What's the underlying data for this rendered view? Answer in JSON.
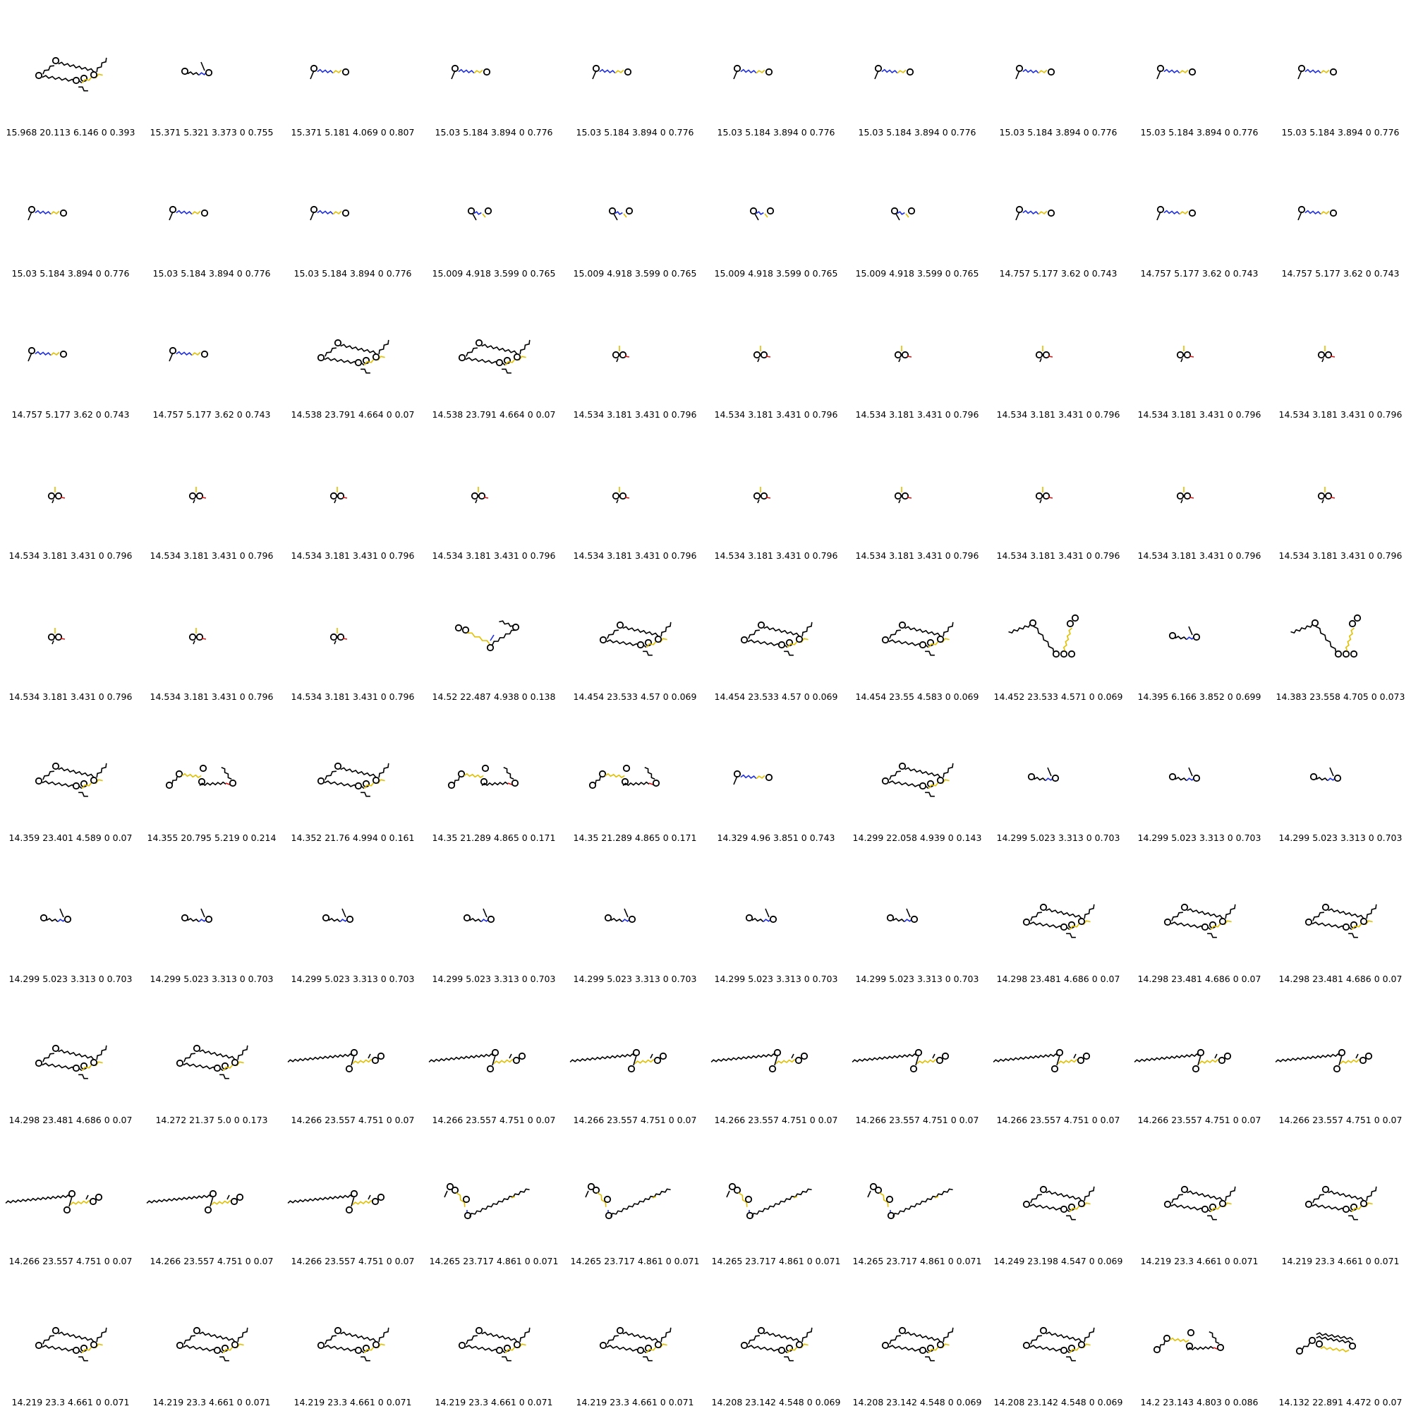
{
  "grid": {
    "columns": 10,
    "colors": {
      "bond": "#000000",
      "sulfur": "#e0c000",
      "nitrogen": "#1f2fe0",
      "oxygen": "#e01010",
      "fluorine": "#20a080"
    },
    "cells": [
      {
        "label": "15.968 20.113 6.146 0 0.393",
        "shape": "long_chain"
      },
      {
        "label": "15.371 5.321 3.373 0 0.755",
        "shape": "small_nitro"
      },
      {
        "label": "15.371 5.181 4.069 0 0.807",
        "shape": "small_linear"
      },
      {
        "label": "15.03 5.184 3.894 0 0.776",
        "shape": "small_linear"
      },
      {
        "label": "15.03 5.184 3.894 0 0.776",
        "shape": "small_linear"
      },
      {
        "label": "15.03 5.184 3.894 0 0.776",
        "shape": "small_linear"
      },
      {
        "label": "15.03 5.184 3.894 0 0.776",
        "shape": "small_linear"
      },
      {
        "label": "15.03 5.184 3.894 0 0.776",
        "shape": "small_linear"
      },
      {
        "label": "15.03 5.184 3.894 0 0.776",
        "shape": "small_linear"
      },
      {
        "label": "15.03 5.184 3.894 0 0.776",
        "shape": "small_linear"
      },
      {
        "label": "15.03 5.184 3.894 0 0.776",
        "shape": "small_linear"
      },
      {
        "label": "15.03 5.184 3.894 0 0.776",
        "shape": "small_linear"
      },
      {
        "label": "15.03 5.184 3.894 0 0.776",
        "shape": "small_linear"
      },
      {
        "label": "15.009 4.918 3.599 0 0.765",
        "shape": "small_bent"
      },
      {
        "label": "15.009 4.918 3.599 0 0.765",
        "shape": "small_bent"
      },
      {
        "label": "15.009 4.918 3.599 0 0.765",
        "shape": "small_bent"
      },
      {
        "label": "15.009 4.918 3.599 0 0.765",
        "shape": "small_bent"
      },
      {
        "label": "14.757 5.177 3.62 0 0.743",
        "shape": "small_linear"
      },
      {
        "label": "14.757 5.177 3.62 0 0.743",
        "shape": "small_linear"
      },
      {
        "label": "14.757 5.177 3.62 0 0.743",
        "shape": "small_linear"
      },
      {
        "label": "14.757 5.177 3.62 0 0.743",
        "shape": "small_linear"
      },
      {
        "label": "14.757 5.177 3.62 0 0.743",
        "shape": "small_linear"
      },
      {
        "label": "14.538 23.791 4.664 0 0.07",
        "shape": "long_chain"
      },
      {
        "label": "14.538 23.791 4.664 0 0.07",
        "shape": "long_chain"
      },
      {
        "label": "14.534 3.181 3.431 0 0.796",
        "shape": "tiny_cluster"
      },
      {
        "label": "14.534 3.181 3.431 0 0.796",
        "shape": "tiny_cluster"
      },
      {
        "label": "14.534 3.181 3.431 0 0.796",
        "shape": "tiny_cluster"
      },
      {
        "label": "14.534 3.181 3.431 0 0.796",
        "shape": "tiny_cluster"
      },
      {
        "label": "14.534 3.181 3.431 0 0.796",
        "shape": "tiny_cluster"
      },
      {
        "label": "14.534 3.181 3.431 0 0.796",
        "shape": "tiny_cluster"
      },
      {
        "label": "14.534 3.181 3.431 0 0.796",
        "shape": "tiny_cluster"
      },
      {
        "label": "14.534 3.181 3.431 0 0.796",
        "shape": "tiny_cluster"
      },
      {
        "label": "14.534 3.181 3.431 0 0.796",
        "shape": "tiny_cluster"
      },
      {
        "label": "14.534 3.181 3.431 0 0.796",
        "shape": "tiny_cluster"
      },
      {
        "label": "14.534 3.181 3.431 0 0.796",
        "shape": "tiny_cluster"
      },
      {
        "label": "14.534 3.181 3.431 0 0.796",
        "shape": "tiny_cluster"
      },
      {
        "label": "14.534 3.181 3.431 0 0.796",
        "shape": "tiny_cluster"
      },
      {
        "label": "14.534 3.181 3.431 0 0.796",
        "shape": "tiny_cluster"
      },
      {
        "label": "14.534 3.181 3.431 0 0.796",
        "shape": "tiny_cluster"
      },
      {
        "label": "14.534 3.181 3.431 0 0.796",
        "shape": "tiny_cluster"
      },
      {
        "label": "14.534 3.181 3.431 0 0.796",
        "shape": "tiny_cluster"
      },
      {
        "label": "14.534 3.181 3.431 0 0.796",
        "shape": "tiny_cluster"
      },
      {
        "label": "14.534 3.181 3.431 0 0.796",
        "shape": "tiny_cluster"
      },
      {
        "label": "14.52 22.487 4.938 0 0.138",
        "shape": "branched"
      },
      {
        "label": "14.454 23.533 4.57 0 0.069",
        "shape": "long_chain"
      },
      {
        "label": "14.454 23.533 4.57 0 0.069",
        "shape": "long_chain"
      },
      {
        "label": "14.454 23.55 4.583 0 0.069",
        "shape": "long_chain"
      },
      {
        "label": "14.452 23.533 4.571 0 0.069",
        "shape": "vee"
      },
      {
        "label": "14.395 6.166 3.852 0 0.699",
        "shape": "small_nitro"
      },
      {
        "label": "14.383 23.558 4.705 0 0.073",
        "shape": "vee"
      },
      {
        "label": "14.359 23.401 4.589 0 0.07",
        "shape": "long_chain"
      },
      {
        "label": "14.355 20.795 5.219 0 0.214",
        "shape": "wide_two"
      },
      {
        "label": "14.352 21.76 4.994 0 0.161",
        "shape": "long_chain"
      },
      {
        "label": "14.35 21.289 4.865 0 0.171",
        "shape": "wide_two"
      },
      {
        "label": "14.35 21.289 4.865 0 0.171",
        "shape": "wide_two"
      },
      {
        "label": "14.329 4.96 3.851 0 0.743",
        "shape": "small_linear"
      },
      {
        "label": "14.299 22.058 4.939 0 0.143",
        "shape": "long_chain"
      },
      {
        "label": "14.299 5.023 3.313 0 0.703",
        "shape": "small_nitro"
      },
      {
        "label": "14.299 5.023 3.313 0 0.703",
        "shape": "small_nitro"
      },
      {
        "label": "14.299 5.023 3.313 0 0.703",
        "shape": "small_nitro"
      },
      {
        "label": "14.299 5.023 3.313 0 0.703",
        "shape": "small_nitro"
      },
      {
        "label": "14.299 5.023 3.313 0 0.703",
        "shape": "small_nitro"
      },
      {
        "label": "14.299 5.023 3.313 0 0.703",
        "shape": "small_nitro"
      },
      {
        "label": "14.299 5.023 3.313 0 0.703",
        "shape": "small_nitro"
      },
      {
        "label": "14.299 5.023 3.313 0 0.703",
        "shape": "small_nitro"
      },
      {
        "label": "14.299 5.023 3.313 0 0.703",
        "shape": "small_nitro"
      },
      {
        "label": "14.299 5.023 3.313 0 0.703",
        "shape": "small_nitro"
      },
      {
        "label": "14.298 23.481 4.686 0 0.07",
        "shape": "long_chain"
      },
      {
        "label": "14.298 23.481 4.686 0 0.07",
        "shape": "long_chain"
      },
      {
        "label": "14.298 23.481 4.686 0 0.07",
        "shape": "long_chain"
      },
      {
        "label": "14.298 23.481 4.686 0 0.07",
        "shape": "long_chain"
      },
      {
        "label": "14.272 21.37 5.0 0 0.173",
        "shape": "long_chain"
      },
      {
        "label": "14.266 23.557 4.751 0 0.07",
        "shape": "flat_long"
      },
      {
        "label": "14.266 23.557 4.751 0 0.07",
        "shape": "flat_long"
      },
      {
        "label": "14.266 23.557 4.751 0 0.07",
        "shape": "flat_long"
      },
      {
        "label": "14.266 23.557 4.751 0 0.07",
        "shape": "flat_long"
      },
      {
        "label": "14.266 23.557 4.751 0 0.07",
        "shape": "flat_long"
      },
      {
        "label": "14.266 23.557 4.751 0 0.07",
        "shape": "flat_long"
      },
      {
        "label": "14.266 23.557 4.751 0 0.07",
        "shape": "flat_long"
      },
      {
        "label": "14.266 23.557 4.751 0 0.07",
        "shape": "flat_long"
      },
      {
        "label": "14.266 23.557 4.751 0 0.07",
        "shape": "flat_long"
      },
      {
        "label": "14.266 23.557 4.751 0 0.07",
        "shape": "flat_long"
      },
      {
        "label": "14.266 23.557 4.751 0 0.07",
        "shape": "flat_long"
      },
      {
        "label": "14.265 23.717 4.861 0 0.071",
        "shape": "v_long"
      },
      {
        "label": "14.265 23.717 4.861 0 0.071",
        "shape": "v_long"
      },
      {
        "label": "14.265 23.717 4.861 0 0.071",
        "shape": "v_long"
      },
      {
        "label": "14.265 23.717 4.861 0 0.071",
        "shape": "v_long"
      },
      {
        "label": "14.249 23.198 4.547 0 0.069",
        "shape": "long_chain"
      },
      {
        "label": "14.219 23.3 4.661 0 0.071",
        "shape": "long_chain"
      },
      {
        "label": "14.219 23.3 4.661 0 0.071",
        "shape": "long_chain"
      },
      {
        "label": "14.219 23.3 4.661 0 0.071",
        "shape": "long_chain"
      },
      {
        "label": "14.219 23.3 4.661 0 0.071",
        "shape": "long_chain"
      },
      {
        "label": "14.219 23.3 4.661 0 0.071",
        "shape": "long_chain"
      },
      {
        "label": "14.219 23.3 4.661 0 0.071",
        "shape": "long_chain"
      },
      {
        "label": "14.219 23.3 4.661 0 0.071",
        "shape": "long_chain"
      },
      {
        "label": "14.208 23.142 4.548 0 0.069",
        "shape": "long_chain"
      },
      {
        "label": "14.208 23.142 4.548 0 0.069",
        "shape": "long_chain"
      },
      {
        "label": "14.208 23.142 4.548 0 0.069",
        "shape": "long_chain"
      },
      {
        "label": "14.2 23.143 4.803 0 0.086",
        "shape": "wide_two"
      },
      {
        "label": "14.132 22.891 4.472 0 0.07",
        "shape": "compact"
      }
    ]
  }
}
